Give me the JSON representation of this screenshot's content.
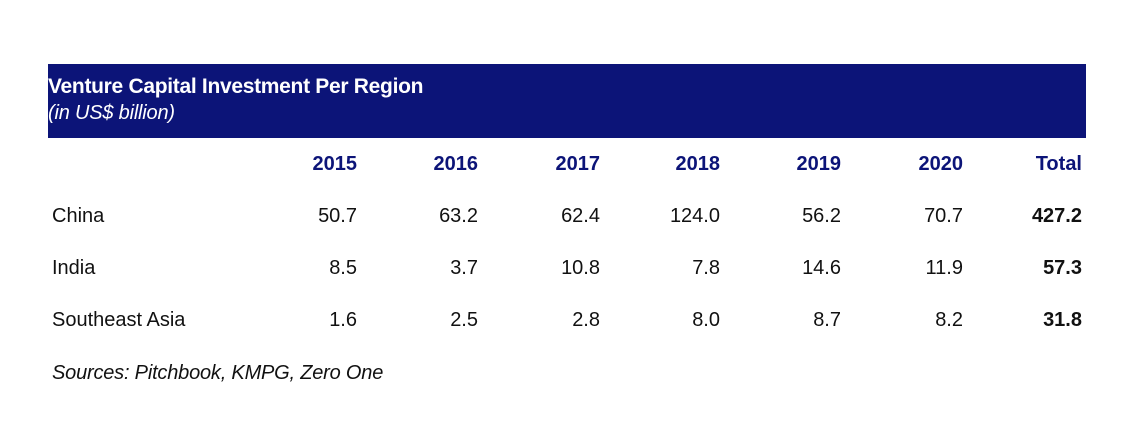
{
  "chart_data": {
    "type": "table",
    "title": "Venture Capital Investment Per Region",
    "subtitle": "(in US$ billion)",
    "columns": [
      "2015",
      "2016",
      "2017",
      "2018",
      "2019",
      "2020",
      "Total"
    ],
    "rows": [
      {
        "region": "China",
        "values": [
          "50.7",
          "63.2",
          "62.4",
          "124.0",
          "56.2",
          "70.7"
        ],
        "total": "427.2"
      },
      {
        "region": "India",
        "values": [
          "8.5",
          "3.7",
          "10.8",
          "7.8",
          "14.6",
          "11.9"
        ],
        "total": "57.3"
      },
      {
        "region": "Southeast Asia",
        "values": [
          "1.6",
          "2.5",
          "2.8",
          "8.0",
          "8.7",
          "8.2"
        ],
        "total": "31.8"
      }
    ],
    "source": "Sources: Pitchbook, KMPG, Zero One"
  },
  "colors": {
    "header_bg": "#0c1478",
    "header_text": "#ffffff",
    "column_header_text": "#0c1478"
  }
}
